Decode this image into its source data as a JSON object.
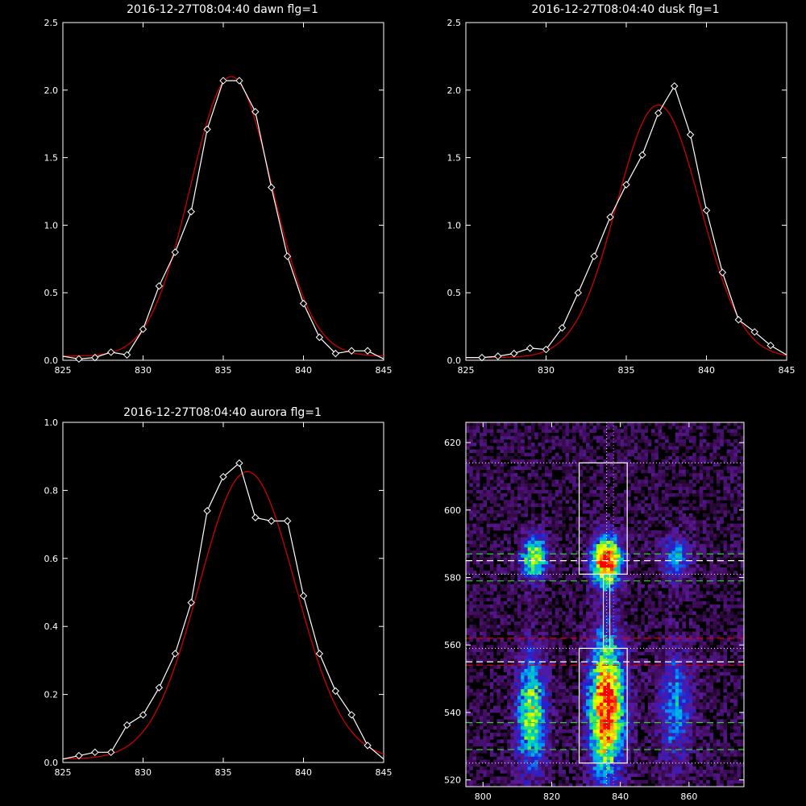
{
  "chart_data": [
    {
      "type": "line",
      "title": "2016-12-27T08:04:40 dawn flg=1",
      "xlim": [
        825,
        845
      ],
      "ylim": [
        0,
        2.5
      ],
      "xticks": [
        "825",
        "830",
        "835",
        "840",
        "845"
      ],
      "yticks": [
        "0.0",
        "0.5",
        "1.0",
        "1.5",
        "2.0",
        "2.5"
      ],
      "series": [
        {
          "role": "data",
          "color": "#ffffff",
          "x": [
            825,
            826,
            827,
            828,
            829,
            830,
            831,
            832,
            833,
            834,
            835,
            836,
            837,
            838,
            839,
            840,
            841,
            842,
            843,
            844,
            845
          ],
          "y": [
            0.03,
            0.01,
            0.02,
            0.06,
            0.04,
            0.23,
            0.55,
            0.8,
            1.1,
            1.71,
            2.07,
            2.07,
            1.84,
            1.28,
            0.77,
            0.42,
            0.17,
            0.05,
            0.07,
            0.07,
            0.01
          ],
          "markers": [
            false,
            true,
            true,
            true,
            true,
            true,
            true,
            true,
            true,
            true,
            true,
            true,
            true,
            true,
            true,
            true,
            true,
            true,
            true,
            true,
            false
          ]
        },
        {
          "role": "fit",
          "color": "#cc0000",
          "fit": {
            "amplitude": 2.07,
            "center": 835.5,
            "sigma": 2.55,
            "offset": 0.03
          }
        }
      ]
    },
    {
      "type": "line",
      "title": "2016-12-27T08:04:40 dusk flg=1",
      "xlim": [
        825,
        845
      ],
      "ylim": [
        0,
        2.5
      ],
      "xticks": [
        "825",
        "830",
        "835",
        "840",
        "845"
      ],
      "yticks": [
        "0.0",
        "0.5",
        "1.0",
        "1.5",
        "2.0",
        "2.5"
      ],
      "series": [
        {
          "role": "data",
          "color": "#ffffff",
          "x": [
            825,
            826,
            827,
            828,
            829,
            830,
            831,
            832,
            833,
            834,
            835,
            836,
            837,
            838,
            839,
            840,
            841,
            842,
            843,
            844,
            845
          ],
          "y": [
            0.02,
            0.02,
            0.03,
            0.05,
            0.09,
            0.08,
            0.24,
            0.5,
            0.77,
            1.06,
            1.3,
            1.52,
            1.83,
            2.03,
            1.67,
            1.11,
            0.65,
            0.3,
            0.21,
            0.11,
            0.04
          ],
          "markers": [
            false,
            true,
            true,
            true,
            true,
            true,
            true,
            true,
            true,
            true,
            true,
            true,
            true,
            true,
            true,
            true,
            true,
            true,
            true,
            true,
            false
          ]
        },
        {
          "role": "fit",
          "color": "#cc0000",
          "fit": {
            "amplitude": 1.87,
            "center": 837.0,
            "sigma": 2.6,
            "offset": 0.02
          }
        }
      ]
    },
    {
      "type": "line",
      "title": "2016-12-27T08:04:40 aurora flg=1",
      "xlim": [
        825,
        845
      ],
      "ylim": [
        0,
        1.0
      ],
      "xticks": [
        "825",
        "830",
        "835",
        "840",
        "845"
      ],
      "yticks": [
        "0.0",
        "0.2",
        "0.4",
        "0.6",
        "0.8",
        "1.0"
      ],
      "series": [
        {
          "role": "data",
          "color": "#ffffff",
          "x": [
            825,
            826,
            827,
            828,
            829,
            830,
            831,
            832,
            833,
            834,
            835,
            836,
            837,
            838,
            839,
            840,
            841,
            842,
            843,
            844,
            845
          ],
          "y": [
            0.01,
            0.02,
            0.03,
            0.03,
            0.11,
            0.14,
            0.22,
            0.32,
            0.47,
            0.74,
            0.84,
            0.88,
            0.72,
            0.71,
            0.71,
            0.49,
            0.32,
            0.21,
            0.14,
            0.05,
            0.01
          ],
          "markers": [
            false,
            true,
            true,
            true,
            true,
            true,
            true,
            true,
            true,
            true,
            true,
            true,
            true,
            true,
            true,
            true,
            true,
            true,
            true,
            true,
            false
          ]
        },
        {
          "role": "fit",
          "color": "#cc0000",
          "fit": {
            "amplitude": 0.845,
            "center": 836.5,
            "sigma": 3.0,
            "offset": 0.01
          }
        }
      ]
    },
    {
      "type": "heatmap",
      "title": "",
      "xlim": [
        795,
        876
      ],
      "ylim": [
        518,
        626
      ],
      "xticks": [
        "800",
        "820",
        "840",
        "860"
      ],
      "yticks": [
        "520",
        "540",
        "560",
        "580",
        "600",
        "620"
      ],
      "colormap": [
        "#000000",
        "#3a0a50",
        "#5a1a9a",
        "#2020d0",
        "#00a0ff",
        "#00e0a0",
        "#a0ff00",
        "#ffff00",
        "#ff8000",
        "#ff0000"
      ],
      "sources": [
        {
          "x": 815,
          "y": 586,
          "amp": 0.7,
          "sx": 2.5,
          "sy": 4.5
        },
        {
          "x": 836,
          "y": 585,
          "amp": 1.0,
          "sx": 3.0,
          "sy": 5.0
        },
        {
          "x": 856,
          "y": 586,
          "amp": 0.35,
          "sx": 3.0,
          "sy": 5.0
        },
        {
          "x": 814,
          "y": 540,
          "amp": 0.6,
          "sx": 3.0,
          "sy": 12.0
        },
        {
          "x": 836,
          "y": 542,
          "amp": 1.0,
          "sx": 3.5,
          "sy": 14.0
        },
        {
          "x": 856,
          "y": 542,
          "amp": 0.35,
          "sx": 3.5,
          "sy": 12.0
        }
      ],
      "boxes": [
        {
          "x0": 828,
          "x1": 842,
          "y0": 581,
          "y1": 614,
          "color": "#ffffff"
        },
        {
          "x0": 828,
          "x1": 842,
          "y0": 525,
          "y1": 559,
          "color": "#ffffff"
        }
      ],
      "hlines_dotted_white": [
        614,
        581,
        559,
        525
      ],
      "hlines_dashed_green": [
        587,
        579,
        537,
        529
      ],
      "hlines_dashed_white": [
        585,
        555
      ],
      "hlines_dashed_red": [
        562,
        554
      ],
      "vlines_dotted": [
        {
          "x": 836,
          "color": "#ffffff"
        },
        {
          "x": 838,
          "color": "#ff66ff"
        }
      ],
      "connector_line_x": 836
    }
  ]
}
